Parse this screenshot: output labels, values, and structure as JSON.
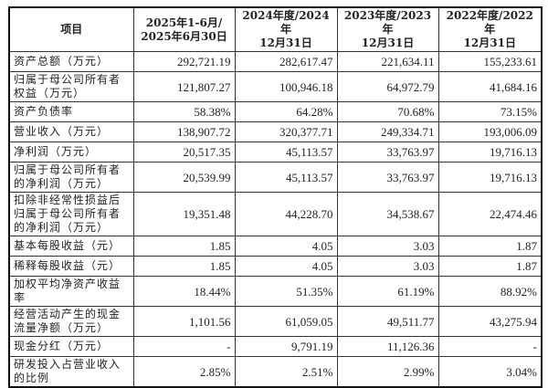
{
  "table": {
    "headers": [
      "项目",
      "2025年1-6月/\n2025年6月30日",
      "2024年度/2024年\n12月31日",
      "2023年度/2023年\n12月31日",
      "2022年度/2022年\n12月31日"
    ],
    "rows": [
      {
        "label": "资产总额（万元）",
        "values": [
          "292,721.19",
          "282,617.47",
          "221,634.11",
          "155,233.61"
        ],
        "lines": 1
      },
      {
        "label": "归属于母公司所有者权益（万元）",
        "values": [
          "121,807.27",
          "100,946.18",
          "64,972.79",
          "41,684.16"
        ],
        "lines": 2
      },
      {
        "label": "资产负债率",
        "values": [
          "58.38%",
          "64.28%",
          "70.68%",
          "73.15%"
        ],
        "lines": 1
      },
      {
        "label": "营业收入（万元）",
        "values": [
          "138,907.72",
          "320,377.71",
          "249,334.71",
          "193,006.09"
        ],
        "lines": 1
      },
      {
        "label": "净利润（万元）",
        "values": [
          "20,517.35",
          "45,113.57",
          "33,763.97",
          "19,716.13"
        ],
        "lines": 1
      },
      {
        "label": "归属于母公司所有者的净利润（万元）",
        "values": [
          "20,539.99",
          "45,113.57",
          "33,763.97",
          "19,716.13"
        ],
        "lines": 2
      },
      {
        "label": "扣除非经常性损益后归属于母公司所有者的净利润（万元）",
        "values": [
          "19,351.48",
          "44,228.70",
          "34,538.67",
          "22,474.46"
        ],
        "lines": 3
      },
      {
        "label": "基本每股收益（元）",
        "values": [
          "1.85",
          "4.05",
          "3.03",
          "1.87"
        ],
        "lines": 1
      },
      {
        "label": "稀释每股收益（元）",
        "values": [
          "1.85",
          "4.05",
          "3.03",
          "1.87"
        ],
        "lines": 1
      },
      {
        "label": "加权平均净资产收益率",
        "values": [
          "18.44%",
          "51.35%",
          "61.19%",
          "88.92%"
        ],
        "lines": 1
      },
      {
        "label": "经营活动产生的现金流量净额（万元）",
        "values": [
          "1,101.56",
          "61,059.05",
          "49,511.77",
          "43,275.94"
        ],
        "lines": 2
      },
      {
        "label": "现金分红（万元）",
        "values": [
          "-",
          "9,791.19",
          "11,126.36",
          "-"
        ],
        "lines": 1
      },
      {
        "label": "研发投入占营业收入的比例",
        "values": [
          "2.85%",
          "2.51%",
          "2.99%",
          "3.04%"
        ],
        "lines": 2
      }
    ]
  }
}
